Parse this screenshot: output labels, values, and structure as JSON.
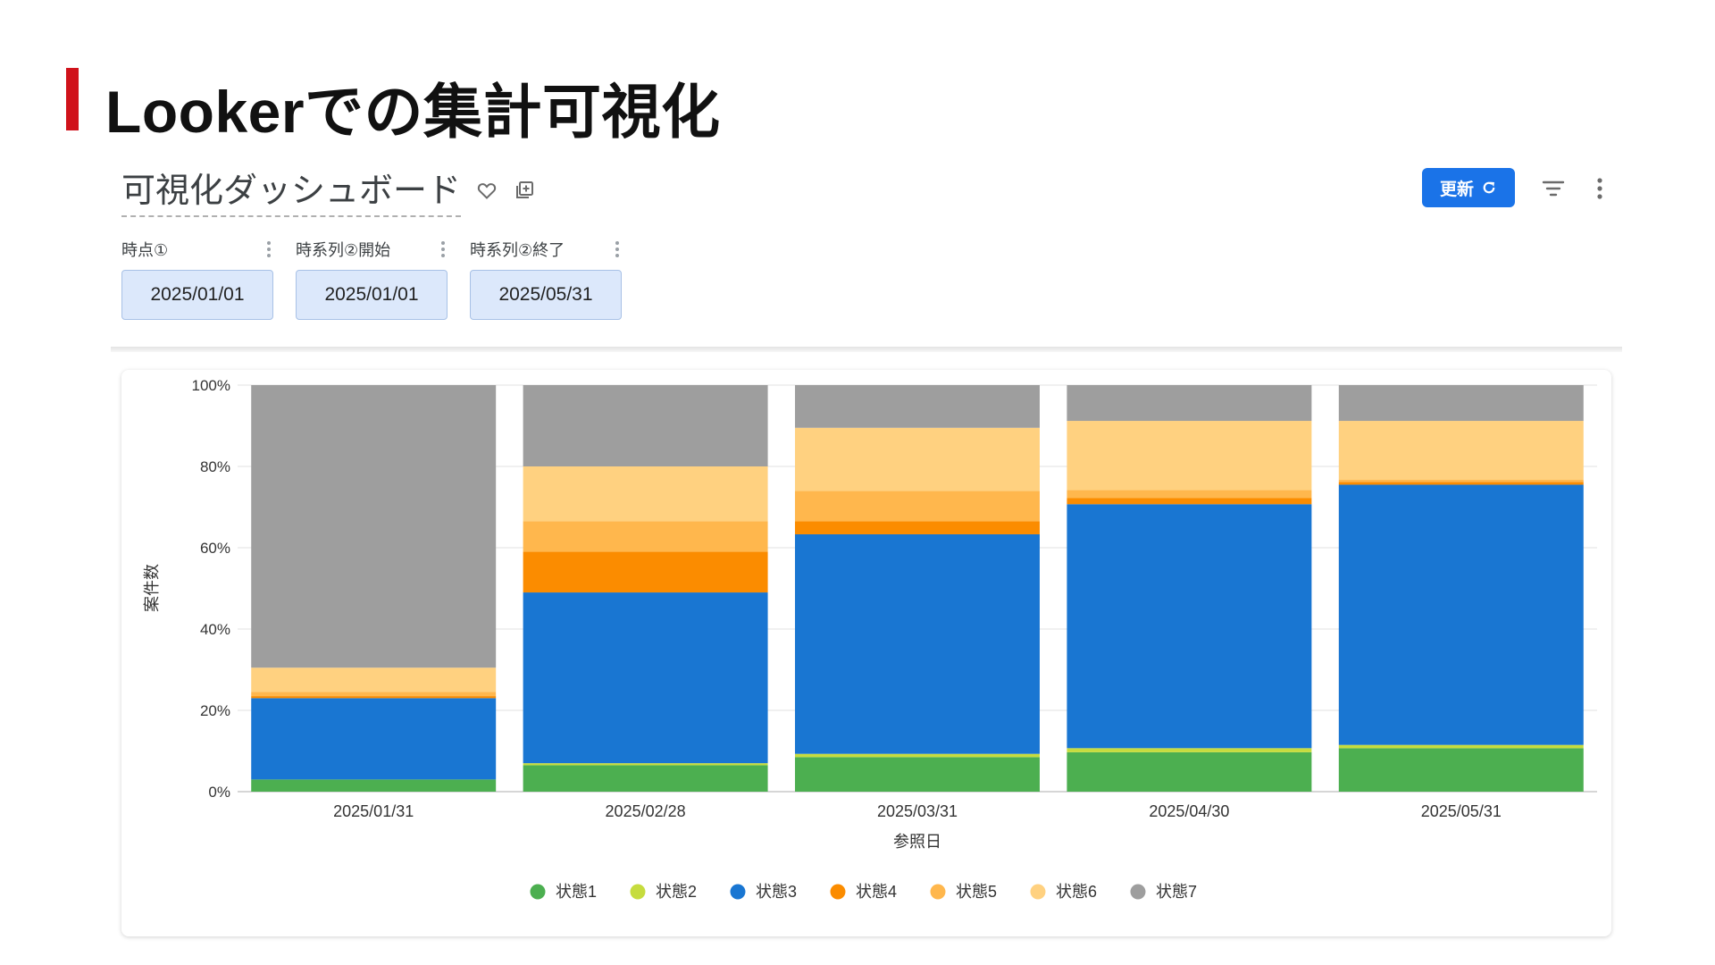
{
  "slide": {
    "title": "Lookerでの集計可視化"
  },
  "dashboard": {
    "title": "可視化ダッシュボード",
    "update_label": "更新",
    "icons": {
      "favorite": "heart-icon",
      "copy": "copy-icon",
      "refresh": "refresh-icon",
      "filter": "filter-icon",
      "more": "more-vert-icon"
    }
  },
  "filters": [
    {
      "label": "時点①",
      "value": "2025/01/01"
    },
    {
      "label": "時系列②開始",
      "value": "2025/01/01"
    },
    {
      "label": "時系列②終了",
      "value": "2025/05/31"
    }
  ],
  "colors": {
    "accent": "#d0121b",
    "button": "#1a73e8",
    "filter_bg": "#dce8fb"
  },
  "chart_data": {
    "type": "bar",
    "stacked": "percent",
    "categories": [
      "2025/01/31",
      "2025/02/28",
      "2025/03/31",
      "2025/04/30",
      "2025/05/31"
    ],
    "xlabel": "参照日",
    "ylabel": "案件数",
    "ylim": [
      0,
      100
    ],
    "yticks": [
      "0%",
      "20%",
      "40%",
      "60%",
      "80%",
      "100%"
    ],
    "grid": true,
    "legend": "bottom",
    "series": [
      {
        "name": "状態1",
        "color": "#4caf50",
        "values": [
          3,
          6.5,
          8.5,
          9.7,
          10.7
        ]
      },
      {
        "name": "状態2",
        "color": "#c6dc3e",
        "values": [
          0,
          0.5,
          0.8,
          1,
          0.8
        ]
      },
      {
        "name": "状態3",
        "color": "#1976d2",
        "values": [
          20,
          42,
          54,
          60,
          64
        ]
      },
      {
        "name": "状態4",
        "color": "#fb8c00",
        "values": [
          0.5,
          10,
          3.2,
          1.5,
          0.7
        ]
      },
      {
        "name": "状態5",
        "color": "#ffb74d",
        "values": [
          1,
          7.5,
          7.5,
          2,
          0.5
        ]
      },
      {
        "name": "状態6",
        "color": "#ffd180",
        "values": [
          6,
          13.5,
          15.5,
          17,
          14.5
        ]
      },
      {
        "name": "状態7",
        "color": "#9e9e9e",
        "values": [
          69.5,
          20,
          10.5,
          8.8,
          8.8
        ]
      }
    ]
  }
}
